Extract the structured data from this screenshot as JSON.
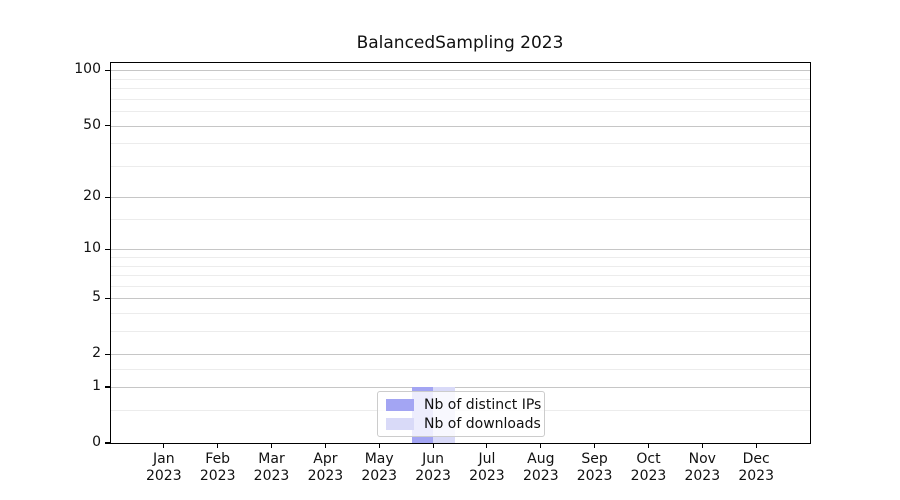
{
  "figure": {
    "title": "BalancedSampling 2023"
  },
  "chart_data": {
    "type": "bar",
    "title": "BalancedSampling 2023",
    "x_categories": [
      "Jan 2023",
      "Feb 2023",
      "Mar 2023",
      "Apr 2023",
      "May 2023",
      "Jun 2023",
      "Jul 2023",
      "Aug 2023",
      "Sep 2023",
      "Oct 2023",
      "Nov 2023",
      "Dec 2023"
    ],
    "x_tick_lines": [
      {
        "month": "Jan",
        "year": "2023"
      },
      {
        "month": "Feb",
        "year": "2023"
      },
      {
        "month": "Mar",
        "year": "2023"
      },
      {
        "month": "Apr",
        "year": "2023"
      },
      {
        "month": "May",
        "year": "2023"
      },
      {
        "month": "Jun",
        "year": "2023"
      },
      {
        "month": "Jul",
        "year": "2023"
      },
      {
        "month": "Aug",
        "year": "2023"
      },
      {
        "month": "Sep",
        "year": "2023"
      },
      {
        "month": "Oct",
        "year": "2023"
      },
      {
        "month": "Nov",
        "year": "2023"
      },
      {
        "month": "Dec",
        "year": "2023"
      }
    ],
    "series": [
      {
        "name": "Nb of distinct IPs",
        "color": "#a3a5f3",
        "values": [
          0,
          0,
          0,
          0,
          0,
          1,
          0,
          0,
          0,
          0,
          0,
          0
        ]
      },
      {
        "name": "Nb of downloads",
        "color": "#d9daf8",
        "values": [
          0,
          0,
          0,
          0,
          0,
          1,
          0,
          0,
          0,
          0,
          0,
          0
        ]
      }
    ],
    "y_axis": {
      "scale": "log1p",
      "min": 0,
      "max": 111,
      "major_ticks": [
        100,
        50,
        20,
        10,
        5,
        2,
        1,
        0
      ],
      "minor_ticks": [
        90,
        80,
        70,
        60,
        40,
        30,
        15,
        9,
        8,
        7,
        6,
        4,
        3,
        1.5,
        0.5
      ]
    },
    "legend": {
      "position": "lower center",
      "entries": [
        "Nb of distinct IPs",
        "Nb of downloads"
      ]
    },
    "grid": {
      "major_color": "#c6c6c6",
      "minor_color": "#ececec"
    },
    "axis_color": "#000000"
  }
}
